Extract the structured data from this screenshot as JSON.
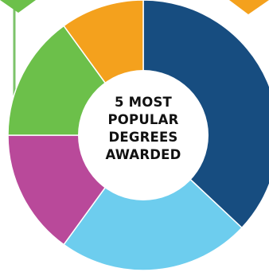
{
  "chart_data": {
    "type": "pie",
    "title_lines": [
      "5 MOST",
      "POPULAR",
      "DEGREES",
      "AWARDED"
    ],
    "slices": [
      {
        "value": 37,
        "color": "#174d80"
      },
      {
        "value": 23,
        "color": "#6dcdee"
      },
      {
        "value": 15,
        "color": "#b9499a"
      },
      {
        "value": 15,
        "color": "#6cc04a"
      },
      {
        "value": 10,
        "color": "#f4a11d"
      }
    ]
  },
  "decor": {
    "connector_color": "#7cc36a",
    "accent_color": "#f4a11d",
    "separator_color": "#ffffff"
  }
}
